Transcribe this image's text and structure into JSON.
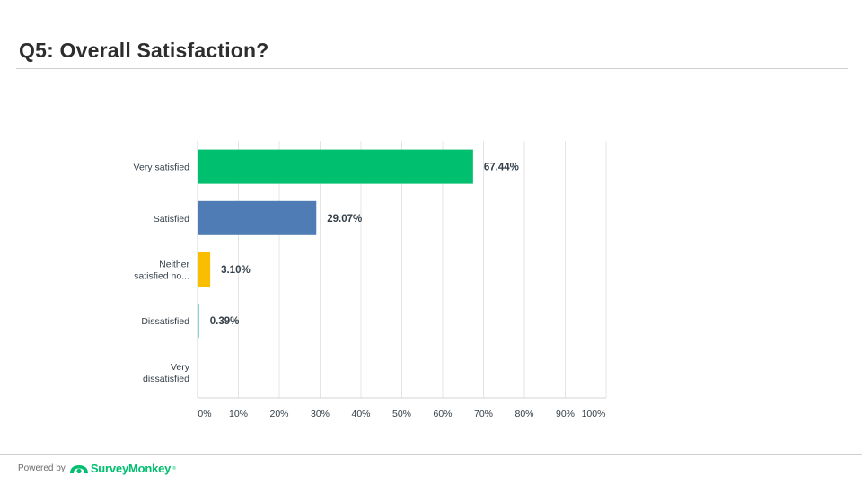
{
  "slide": {
    "title": "Q5: Overall Satisfaction?"
  },
  "footer": {
    "powered_by": "Powered by",
    "brand": "SurveyMonkey",
    "brand_mark": "®",
    "brand_color": "#00bf6f"
  },
  "chart_data": {
    "type": "bar",
    "orientation": "horizontal",
    "categories": [
      [
        "Very satisfied"
      ],
      [
        "Satisfied"
      ],
      [
        "Neither",
        "satisfied no..."
      ],
      [
        "Dissatisfied"
      ],
      [
        "Very",
        "dissatisfied"
      ]
    ],
    "values": [
      67.44,
      29.07,
      3.1,
      0.39,
      0
    ],
    "value_labels": [
      "67.44%",
      "29.07%",
      "3.10%",
      "0.39%",
      ""
    ],
    "colors": [
      "#00bf6f",
      "#507cb6",
      "#f9be00",
      "#6bc8cd",
      "#ff8b4f"
    ],
    "xlim": [
      0,
      100
    ],
    "xticks": [
      0,
      10,
      20,
      30,
      40,
      50,
      60,
      70,
      80,
      90,
      100
    ],
    "xtick_labels": [
      "0%",
      "10%",
      "20%",
      "30%",
      "40%",
      "50%",
      "60%",
      "70%",
      "80%",
      "90%",
      "100%"
    ],
    "grid": true
  }
}
